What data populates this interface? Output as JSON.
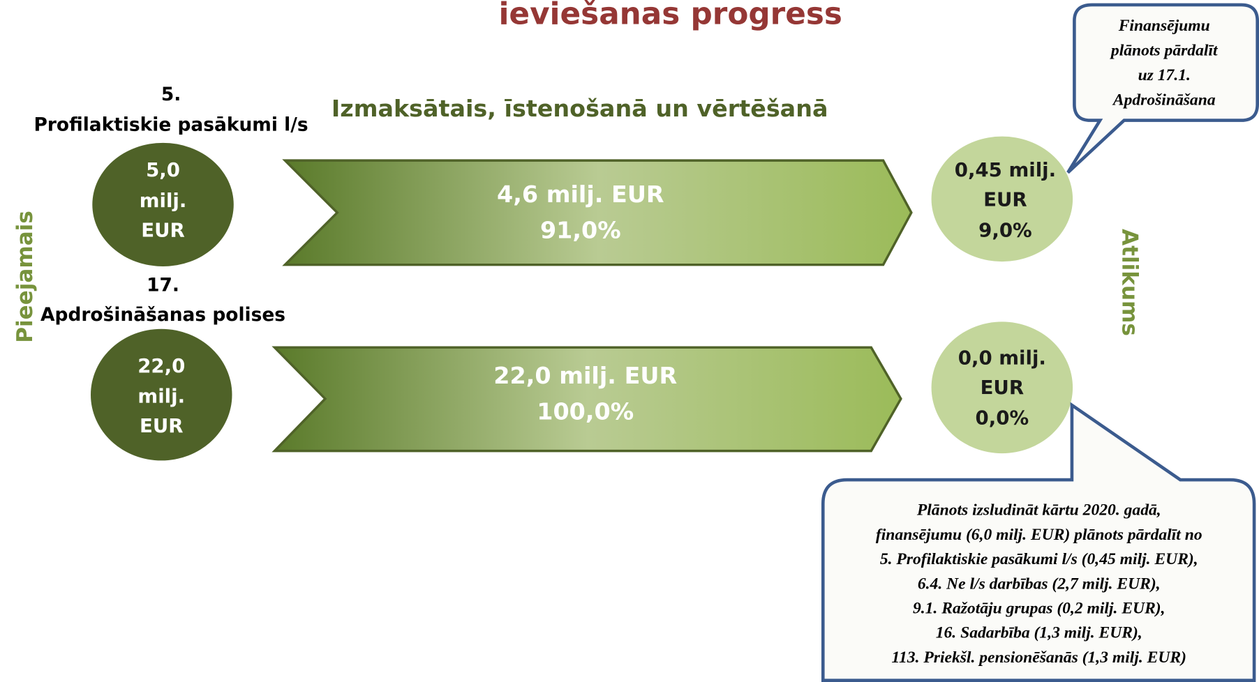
{
  "title": "ieviešanas progress",
  "header": "Izmaksātais, īstenošanā un vērtēšanā",
  "left_label": "Pieejamais",
  "right_label": "Atlikums",
  "rows": [
    {
      "heading": [
        "5.",
        "Profilaktiskie pasākumi l/s"
      ],
      "available": [
        "5,0",
        "milj.",
        "EUR"
      ],
      "paid": [
        "4,6 milj. EUR",
        "91,0%"
      ],
      "remaining": [
        "0,45 milj.",
        "EUR",
        "9,0%"
      ]
    },
    {
      "heading": [
        "17.",
        "Apdrošināšanas polises"
      ],
      "available": [
        "22,0",
        "milj.",
        "EUR"
      ],
      "paid": [
        "22,0 milj. EUR",
        "100,0%"
      ],
      "remaining": [
        "0,0 milj.",
        "EUR",
        "0,0%"
      ]
    }
  ],
  "callouts": [
    {
      "lines": [
        "Finansējumu",
        "plānots pārdalīt",
        "uz 17.1.",
        "Apdrošināšana"
      ]
    },
    {
      "lines": [
        "Plānots izsludināt kārtu 2020. gadā,",
        "finansējumu (6,0 milj. EUR) plānots pārdalīt  no",
        "5. Profilaktiskie pasākumi l/s (0,45 milj. EUR),",
        "6.4. Ne l/s darbības (2,7 milj. EUR),",
        "9.1. Ražotāju grupas (0,2 milj. EUR),",
        "16. Sadarbība (1,3 milj. EUR),",
        "113. Priekšl. pensionēšanās (1,3 milj. EUR)"
      ]
    }
  ]
}
